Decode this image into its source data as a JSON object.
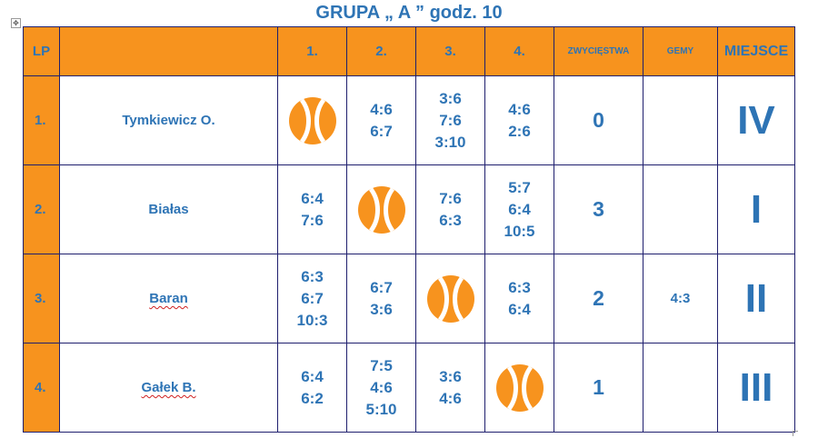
{
  "title": "GRUPA „ A ” godz. 10",
  "table_move_handle": "✥",
  "colors": {
    "header_fill": "#f7931e",
    "text": "#2e74b5",
    "ball_orange": "#f7931e",
    "border": "#1f1f6e"
  },
  "headers": {
    "lp": "LP",
    "name": "",
    "col1": "1.",
    "col2": "2.",
    "col3": "3.",
    "col4": "4.",
    "wins": "ZWYCIĘSTWA",
    "games": "GEMY",
    "place": "MIEJSCE"
  },
  "rows": [
    {
      "lp": "1.",
      "name": "Tymkiewicz O.",
      "c1": "",
      "c2": "4:6\n6:7",
      "c3": "3:6\n7:6\n3:10",
      "c4": "4:6\n2:6",
      "wins": "0",
      "games": "",
      "place": "IV"
    },
    {
      "lp": "2.",
      "name": "Białas",
      "c1": "6:4\n7:6",
      "c2": "",
      "c3": "7:6\n6:3",
      "c4": "5:7\n6:4\n10:5",
      "wins": "3",
      "games": "",
      "place": "I"
    },
    {
      "lp": "3.",
      "name": "Baran",
      "c1": "6:3\n6:7\n10:3",
      "c2": "6:7\n3:6",
      "c3": "",
      "c4": "6:3\n6:4",
      "wins": "2",
      "games": "4:3",
      "place": "II"
    },
    {
      "lp": "4.",
      "name": "Gałek B.",
      "c1": "6:4\n6:2",
      "c2": "7:5\n4:6\n5:10",
      "c3": "3:6\n4:6",
      "c4": "",
      "wins": "1",
      "games": "",
      "place": "III"
    }
  ]
}
